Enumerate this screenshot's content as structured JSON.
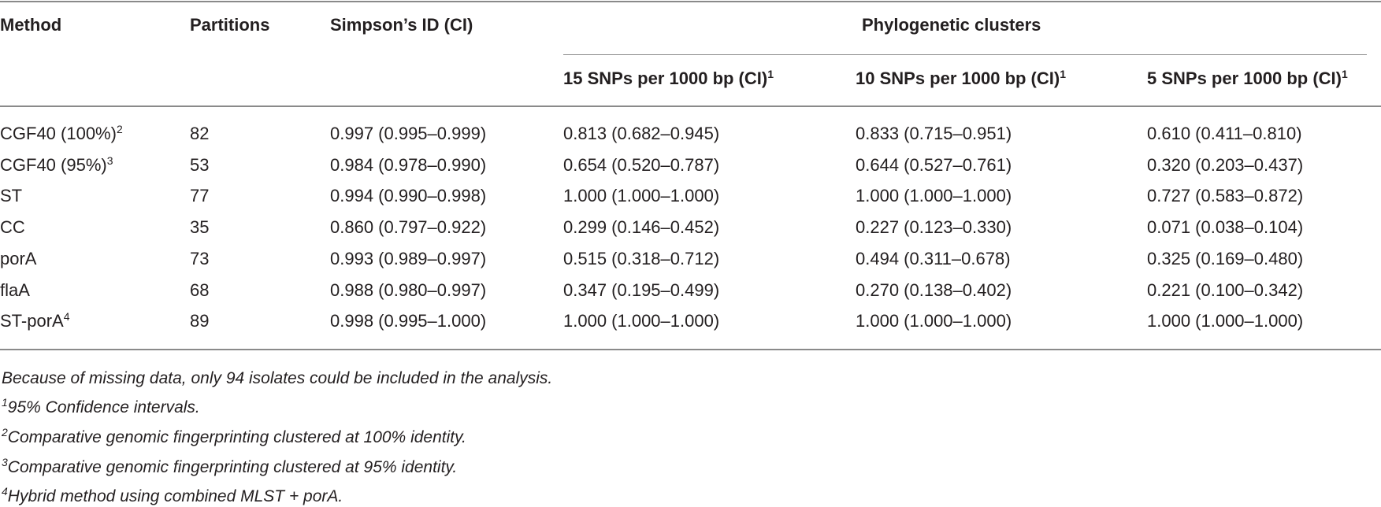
{
  "table": {
    "headers": [
      "Method",
      "Partitions",
      "Simpson’s ID (CI)"
    ],
    "group_header": "Phylogenetic clusters",
    "subheaders": [
      {
        "text": "15 SNPs per 1000 bp (CI)",
        "sup": "1"
      },
      {
        "text": "10 SNPs per 1000 bp (CI)",
        "sup": "1"
      },
      {
        "text": "5 SNPs per 1000 bp (CI)",
        "sup": "1"
      }
    ],
    "rows": [
      {
        "method": "CGF40 (100%)",
        "sup": "2",
        "cells": [
          "82",
          "0.997 (0.995–0.999)",
          "0.813 (0.682–0.945)",
          "0.833 (0.715–0.951)",
          "0.610 (0.411–0.810)"
        ]
      },
      {
        "method": "CGF40 (95%)",
        "sup": "3",
        "cells": [
          "53",
          "0.984 (0.978–0.990)",
          "0.654 (0.520–0.787)",
          "0.644 (0.527–0.761)",
          "0.320 (0.203–0.437)"
        ]
      },
      {
        "method": "ST",
        "cells": [
          "77",
          "0.994 (0.990–0.998)",
          "1.000 (1.000–1.000)",
          "1.000 (1.000–1.000)",
          "0.727 (0.583–0.872)"
        ]
      },
      {
        "method": "CC",
        "cells": [
          "35",
          "0.860 (0.797–0.922)",
          "0.299 (0.146–0.452)",
          "0.227 (0.123–0.330)",
          "0.071 (0.038–0.104)"
        ]
      },
      {
        "method": "porA",
        "cells": [
          "73",
          "0.993 (0.989–0.997)",
          "0.515 (0.318–0.712)",
          "0.494 (0.311–0.678)",
          "0.325 (0.169–0.480)"
        ]
      },
      {
        "method": "flaA",
        "cells": [
          "68",
          "0.988 (0.980–0.997)",
          "0.347 (0.195–0.499)",
          "0.270 (0.138–0.402)",
          "0.221 (0.100–0.342)"
        ]
      },
      {
        "method": "ST-porA",
        "sup": "4",
        "cells": [
          "89",
          "0.998 (0.995–1.000)",
          "1.000 (1.000–1.000)",
          "1.000 (1.000–1.000)",
          "1.000 (1.000–1.000)"
        ]
      }
    ],
    "note": "Because of missing data, only 94 isolates could be included in the analysis.",
    "footnotes": [
      {
        "marker": "1",
        "text": "95% Confidence intervals."
      },
      {
        "marker": "2",
        "text": "Comparative genomic fingerprinting clustered at 100% identity."
      },
      {
        "marker": "3",
        "text": "Comparative genomic fingerprinting clustered at 95% identity."
      },
      {
        "marker": "4",
        "text": "Hybrid method using combined MLST + porA."
      }
    ]
  }
}
